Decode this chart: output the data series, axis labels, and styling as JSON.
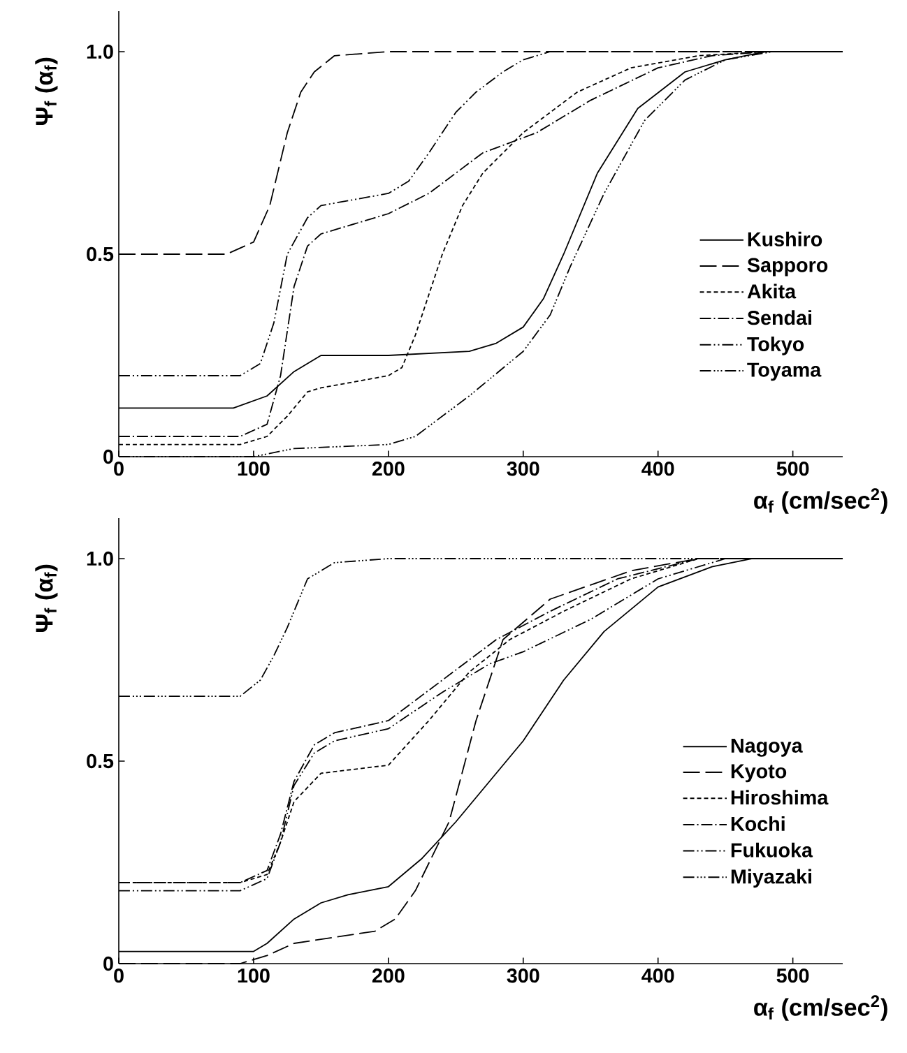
{
  "chart_data": [
    {
      "type": "line",
      "xlabel": "α$_{f}$ (cm/sec$^{2}$)",
      "ylabel": "Ψ$_{f}$ (α$_{f}$)",
      "xlim": [
        0,
        537
      ],
      "ylim": [
        0,
        1.1
      ],
      "xticks": [
        0,
        100,
        200,
        300,
        400,
        500
      ],
      "yticks": [
        0,
        0.5,
        {
          "value": 1.0,
          "label": "1.0"
        }
      ],
      "legend": "right",
      "grid": false,
      "marker": "none",
      "series": [
        {
          "name": "Kushiro",
          "color": "#000000",
          "line_style": "solid",
          "x": [
            0,
            85,
            110,
            130,
            150,
            200,
            260,
            280,
            300,
            315,
            330,
            355,
            385,
            420,
            450,
            480,
            537
          ],
          "values": [
            0.12,
            0.12,
            0.15,
            0.21,
            0.25,
            0.25,
            0.26,
            0.28,
            0.32,
            0.39,
            0.5,
            0.7,
            0.86,
            0.95,
            0.98,
            1.0,
            1.0
          ]
        },
        {
          "name": "Sapporo",
          "color": "#000000",
          "line_style": "longdash",
          "x": [
            0,
            80,
            100,
            112,
            125,
            135,
            145,
            160,
            200,
            537
          ],
          "values": [
            0.5,
            0.5,
            0.53,
            0.62,
            0.8,
            0.9,
            0.95,
            0.99,
            1.0,
            1.0
          ]
        },
        {
          "name": "Akita",
          "color": "#000000",
          "line_style": "dashed",
          "x": [
            0,
            90,
            110,
            125,
            140,
            150,
            200,
            210,
            220,
            230,
            240,
            255,
            270,
            300,
            340,
            380,
            430,
            480,
            537
          ],
          "values": [
            0.03,
            0.03,
            0.05,
            0.1,
            0.16,
            0.17,
            0.2,
            0.22,
            0.3,
            0.4,
            0.5,
            0.62,
            0.7,
            0.8,
            0.9,
            0.96,
            0.99,
            1.0,
            1.0
          ]
        },
        {
          "name": "Sendai",
          "color": "#000000",
          "line_style": "dashdot",
          "x": [
            0,
            90,
            110,
            120,
            130,
            140,
            150,
            200,
            230,
            270,
            310,
            350,
            400,
            440,
            480,
            537
          ],
          "values": [
            0.05,
            0.05,
            0.08,
            0.2,
            0.42,
            0.52,
            0.55,
            0.6,
            0.65,
            0.75,
            0.8,
            0.88,
            0.96,
            0.99,
            1.0,
            1.0
          ]
        },
        {
          "name": "Tokyo",
          "color": "#000000",
          "line_style": "dashdotdot",
          "x": [
            0,
            90,
            105,
            115,
            125,
            140,
            150,
            200,
            215,
            230,
            250,
            265,
            285,
            300,
            320,
            537
          ],
          "values": [
            0.2,
            0.2,
            0.23,
            0.33,
            0.5,
            0.59,
            0.62,
            0.65,
            0.68,
            0.75,
            0.85,
            0.9,
            0.95,
            0.98,
            1.0,
            1.0
          ]
        },
        {
          "name": "Toyama",
          "color": "#000000",
          "line_style": "dashdotdotdot",
          "x": [
            0,
            100,
            130,
            200,
            220,
            260,
            300,
            320,
            335,
            360,
            390,
            420,
            450,
            485,
            537
          ],
          "values": [
            0.0,
            0.0,
            0.02,
            0.03,
            0.05,
            0.15,
            0.26,
            0.35,
            0.47,
            0.65,
            0.83,
            0.93,
            0.98,
            1.0,
            1.0
          ]
        }
      ]
    },
    {
      "type": "line",
      "xlabel": "α$_{f}$ (cm/sec$^{2}$)",
      "ylabel": "Ψ$_{f}$ (α$_{f}$)",
      "xlim": [
        0,
        537
      ],
      "ylim": [
        0,
        1.1
      ],
      "xticks": [
        0,
        100,
        200,
        300,
        400,
        500
      ],
      "yticks": [
        0,
        0.5,
        {
          "value": 1.0,
          "label": "1.0"
        }
      ],
      "legend": "right",
      "grid": false,
      "marker": "none",
      "series": [
        {
          "name": "Nagoya",
          "color": "#000000",
          "line_style": "solid",
          "x": [
            0,
            100,
            110,
            130,
            150,
            170,
            200,
            225,
            250,
            275,
            300,
            330,
            360,
            400,
            440,
            470,
            537
          ],
          "values": [
            0.03,
            0.03,
            0.05,
            0.11,
            0.15,
            0.17,
            0.19,
            0.26,
            0.35,
            0.45,
            0.55,
            0.7,
            0.82,
            0.93,
            0.98,
            1.0,
            1.0
          ]
        },
        {
          "name": "Kyoto",
          "color": "#000000",
          "line_style": "longdash",
          "x": [
            0,
            90,
            110,
            130,
            150,
            190,
            205,
            220,
            245,
            265,
            285,
            320,
            380,
            430,
            537
          ],
          "values": [
            0.0,
            0.0,
            0.02,
            0.05,
            0.06,
            0.08,
            0.11,
            0.18,
            0.35,
            0.6,
            0.8,
            0.9,
            0.97,
            1.0,
            1.0
          ]
        },
        {
          "name": "Hiroshima",
          "color": "#000000",
          "line_style": "dashed",
          "x": [
            0,
            90,
            110,
            120,
            130,
            150,
            200,
            230,
            260,
            290,
            330,
            380,
            430,
            537
          ],
          "values": [
            0.2,
            0.2,
            0.22,
            0.3,
            0.4,
            0.47,
            0.49,
            0.6,
            0.72,
            0.8,
            0.87,
            0.95,
            1.0,
            1.0
          ]
        },
        {
          "name": "Kochi",
          "color": "#000000",
          "line_style": "dashdot",
          "x": [
            0,
            90,
            110,
            120,
            130,
            145,
            160,
            200,
            240,
            280,
            320,
            370,
            430,
            537
          ],
          "values": [
            0.2,
            0.2,
            0.23,
            0.32,
            0.45,
            0.54,
            0.57,
            0.6,
            0.7,
            0.8,
            0.87,
            0.95,
            1.0,
            1.0
          ]
        },
        {
          "name": "Fukuoka",
          "color": "#000000",
          "line_style": "dashdotdot",
          "x": [
            0,
            90,
            110,
            120,
            130,
            145,
            160,
            200,
            240,
            275,
            300,
            350,
            400,
            450,
            537
          ],
          "values": [
            0.18,
            0.18,
            0.21,
            0.3,
            0.44,
            0.52,
            0.55,
            0.58,
            0.67,
            0.74,
            0.77,
            0.85,
            0.95,
            1.0,
            1.0
          ]
        },
        {
          "name": "Miyazaki",
          "color": "#000000",
          "line_style": "dashdotdotdot",
          "x": [
            0,
            90,
            105,
            115,
            125,
            140,
            160,
            200,
            537
          ],
          "values": [
            0.66,
            0.66,
            0.7,
            0.76,
            0.83,
            0.95,
            0.99,
            1.0,
            1.0
          ]
        }
      ]
    }
  ]
}
